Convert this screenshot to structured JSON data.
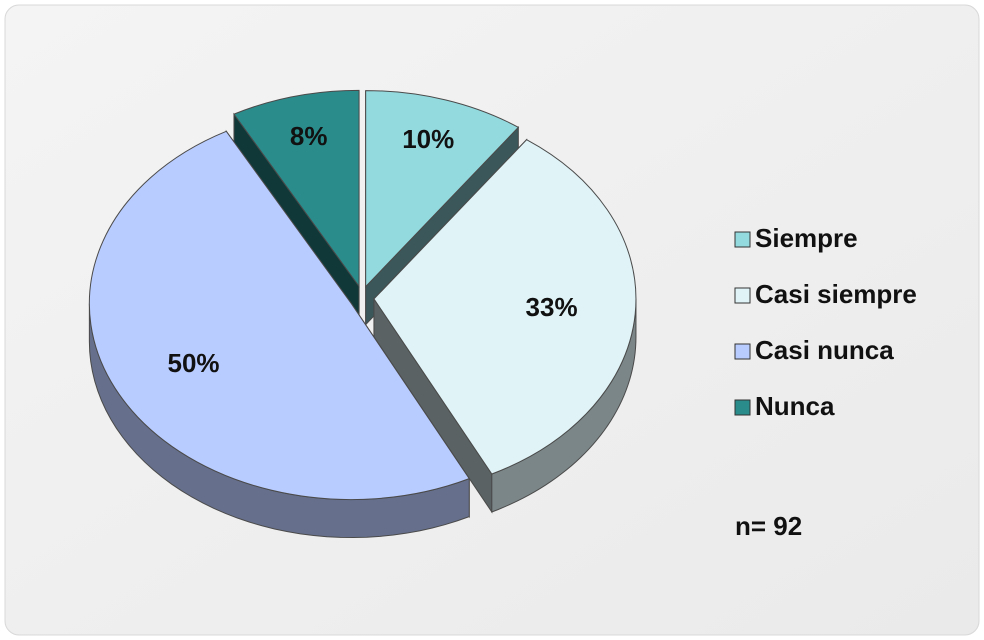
{
  "chart_data": {
    "type": "pie",
    "categories": [
      "Siempre",
      "Casi siempre",
      "Casi nunca",
      "Nunca"
    ],
    "values": [
      10,
      33,
      50,
      8
    ],
    "value_labels": [
      "10%",
      "33%",
      "50%",
      "8%"
    ],
    "colors": [
      "#93dadf",
      "#e0f4f8",
      "#b9ccff",
      "#2b8c8c"
    ],
    "legend": "right",
    "annotation": "n= 92"
  }
}
